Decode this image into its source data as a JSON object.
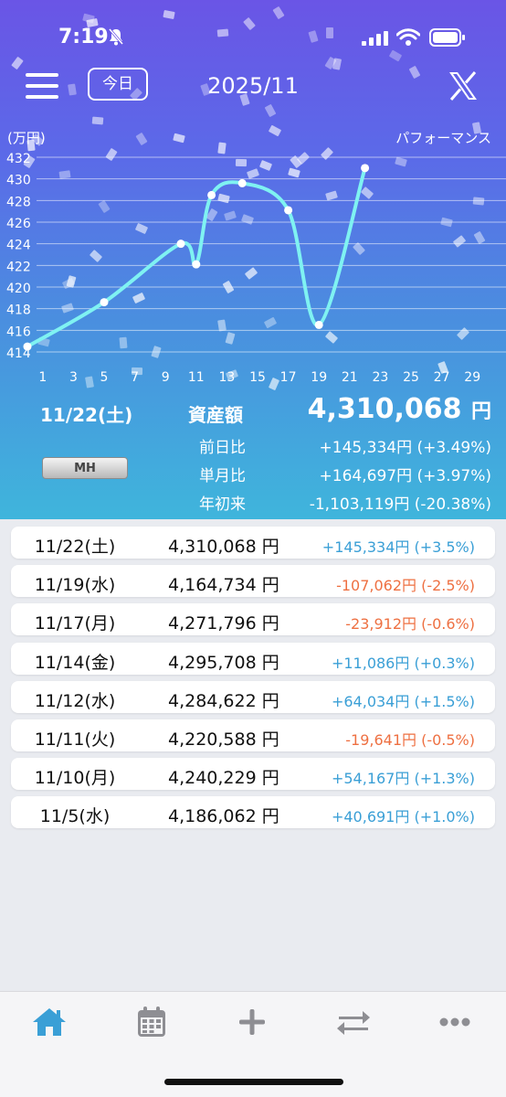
{
  "status_bar": {
    "time": "7:19"
  },
  "header": {
    "today_button": "今日",
    "month": "2025/11"
  },
  "chart": {
    "unit": "(万円)",
    "mode_label": "パフォーマンス"
  },
  "chart_data": {
    "type": "line",
    "x_ticks": [
      "1",
      "3",
      "5",
      "7",
      "9",
      "11",
      "13",
      "15",
      "17",
      "19",
      "21",
      "23",
      "25",
      "27",
      "29"
    ],
    "y_ticks": [
      "414",
      "416",
      "418",
      "420",
      "422",
      "424",
      "426",
      "428",
      "430",
      "432"
    ],
    "xlim": [
      1,
      29
    ],
    "ylim": [
      414,
      432
    ],
    "ylabel": "(万円)",
    "series": [
      {
        "x": [
          0,
          5,
          10,
          11,
          12,
          14,
          17,
          19,
          22
        ],
        "values": [
          414.5,
          418.6,
          424.0,
          422.1,
          428.5,
          429.6,
          427.1,
          416.5,
          431.0
        ]
      }
    ],
    "line_color": "#7ff2f2",
    "grid": true
  },
  "summary": {
    "date": "11/22(土)",
    "asset_label": "資産額",
    "asset_value": "4,310,068",
    "yen": "円",
    "badge": "MH",
    "comparisons": [
      {
        "label": "前日比",
        "value": "+145,334円 (+3.49%)"
      },
      {
        "label": "単月比",
        "value": "+164,697円 (+3.97%)"
      },
      {
        "label": "年初来",
        "value": "-1,103,119円 (-20.38%)"
      }
    ]
  },
  "rows": [
    {
      "date": "11/22(土)",
      "value": "4,310,068 円",
      "change": "+145,334円 (+3.5%)",
      "positive": true
    },
    {
      "date": "11/19(水)",
      "value": "4,164,734 円",
      "change": "-107,062円 (-2.5%)",
      "positive": false
    },
    {
      "date": "11/17(月)",
      "value": "4,271,796 円",
      "change": "-23,912円 (-0.6%)",
      "positive": false
    },
    {
      "date": "11/14(金)",
      "value": "4,295,708 円",
      "change": "+11,086円 (+0.3%)",
      "positive": true
    },
    {
      "date": "11/12(水)",
      "value": "4,284,622 円",
      "change": "+64,034円 (+1.5%)",
      "positive": true
    },
    {
      "date": "11/11(火)",
      "value": "4,220,588 円",
      "change": "-19,641円 (-0.5%)",
      "positive": false
    },
    {
      "date": "11/10(月)",
      "value": "4,240,229 円",
      "change": "+54,167円 (+1.3%)",
      "positive": true
    },
    {
      "date": "11/5(水)",
      "value": "4,186,062 円",
      "change": "+40,691円 (+1.0%)",
      "positive": true
    }
  ],
  "tabs": [
    {
      "icon": "home-icon",
      "active": true
    },
    {
      "icon": "calendar-icon",
      "active": false
    },
    {
      "icon": "plus-icon",
      "active": false
    },
    {
      "icon": "transfer-icon",
      "active": false
    },
    {
      "icon": "more-icon",
      "active": false
    }
  ],
  "colors": {
    "positive": "#3a9fd6",
    "negative": "#ee7042",
    "active_tab": "#3a9fd6",
    "inactive_tab": "#8e8e93"
  }
}
